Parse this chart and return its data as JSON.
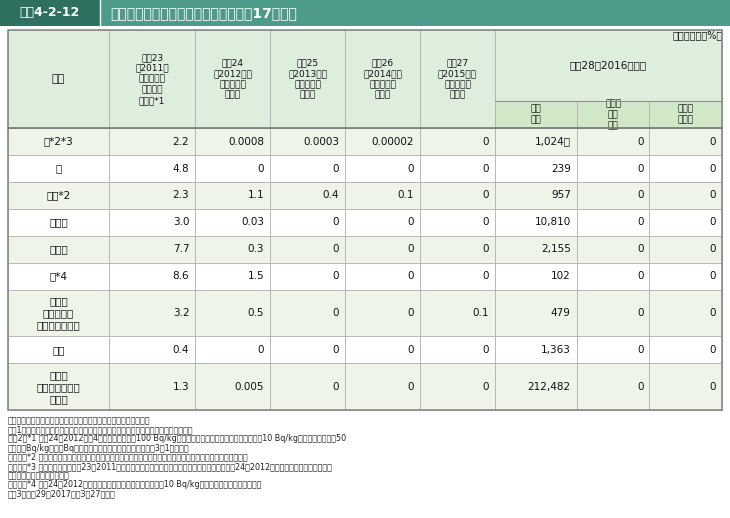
{
  "title_label": "図表4-2-12",
  "title_text": "農畜産物の放射性物質の検査の概要（17都県）",
  "unit_label": "（単位：点、%）",
  "col0_label": "品目",
  "h28_label": "平成28（2016）年度",
  "header_labels": [
    "平成23\n（2011）\n年度末まで\nの基準値\n超過率*1",
    "平成24\n（2012）年\n度の基準値\n超過率",
    "平成25\n（2013）年\n度の基準値\n超過率",
    "平成26\n（2014）年\n度の基準値\n超過率",
    "平成27\n（2015）年\n度の基準値\n超過率"
  ],
  "sub_header_labels": [
    "検査\n点数",
    "基準値\n超過\n点数",
    "基準値\n超過率"
  ],
  "rows": [
    [
      "米*2*3",
      "2.2",
      "0.0008",
      "0.0003",
      "0.00002",
      "0",
      "1,024万",
      "0",
      "0"
    ],
    [
      "麦",
      "4.8",
      "0",
      "0",
      "0",
      "0",
      "239",
      "0",
      "0"
    ],
    [
      "豆類*2",
      "2.3",
      "1.1",
      "0.4",
      "0.1",
      "0",
      "957",
      "0",
      "0"
    ],
    [
      "野菜類",
      "3.0",
      "0.03",
      "0",
      "0",
      "0",
      "10,810",
      "0",
      "0"
    ],
    [
      "果実類",
      "7.7",
      "0.3",
      "0",
      "0",
      "0",
      "2,155",
      "0",
      "0"
    ],
    [
      "茶*4",
      "8.6",
      "1.5",
      "0",
      "0",
      "0",
      "102",
      "0",
      "0"
    ],
    [
      "その他\n地域特産物\n（そばを含む）",
      "3.2",
      "0.5",
      "0",
      "0",
      "0.1",
      "479",
      "0",
      "0"
    ],
    [
      "原乳",
      "0.4",
      "0",
      "0",
      "0",
      "0",
      "1,363",
      "0",
      "0"
    ],
    [
      "肉・卵\n（野生鳥獣肉を\n除く）",
      "1.3",
      "0.005",
      "0",
      "0",
      "0",
      "212,482",
      "0",
      "0"
    ]
  ],
  "footer_lines": [
    "資料：厚生労働省資料、地方公共団体資料を基に農林水産省で作成",
    "注：1）基準値を超過した品目・地域については、出荷制限や自粛等が行われている。",
    "　　2）*1 平成24（2012）年4月施行の基準値（100 Bq/kg）の超過率（茶については浸出液換算で10 Bq/kg、原乳については50",
    "　　　　Bq/kg。）。Bq（ベクレル）については、用語の解説3（1）を参照",
    "　　　　*2 穀類（米、豆類）について、生産年度と検査年度が異なる場合は、生産年度の結果に含めている。",
    "　　　　*3 福島県で行った平成23（2011）年度産の緊急調査、福島県と宮城県の一部地域で平成24（2012）年度以降に行った全袋検査",
    "　　　　　　の点数を含む。",
    "　　　　*4 平成24（2012）年度以降の茶は、飲料水の基準値（10 Bq/kg）が適用される緑茶のみ計上",
    "　　3）平成29（2017）年3月27日時点"
  ],
  "title_bar_bg": "#4d9b8a",
  "title_label_bg": "#2d7060",
  "title_text_color": "#ffffff",
  "header_bg": "#ddeedd",
  "header_bg2": "#d0e8c8",
  "row_bg_shaded": "#eef4e8",
  "row_bg_white": "#ffffff",
  "border_color": "#aaaaaa",
  "outer_border_color": "#888888",
  "text_color": "#111111"
}
